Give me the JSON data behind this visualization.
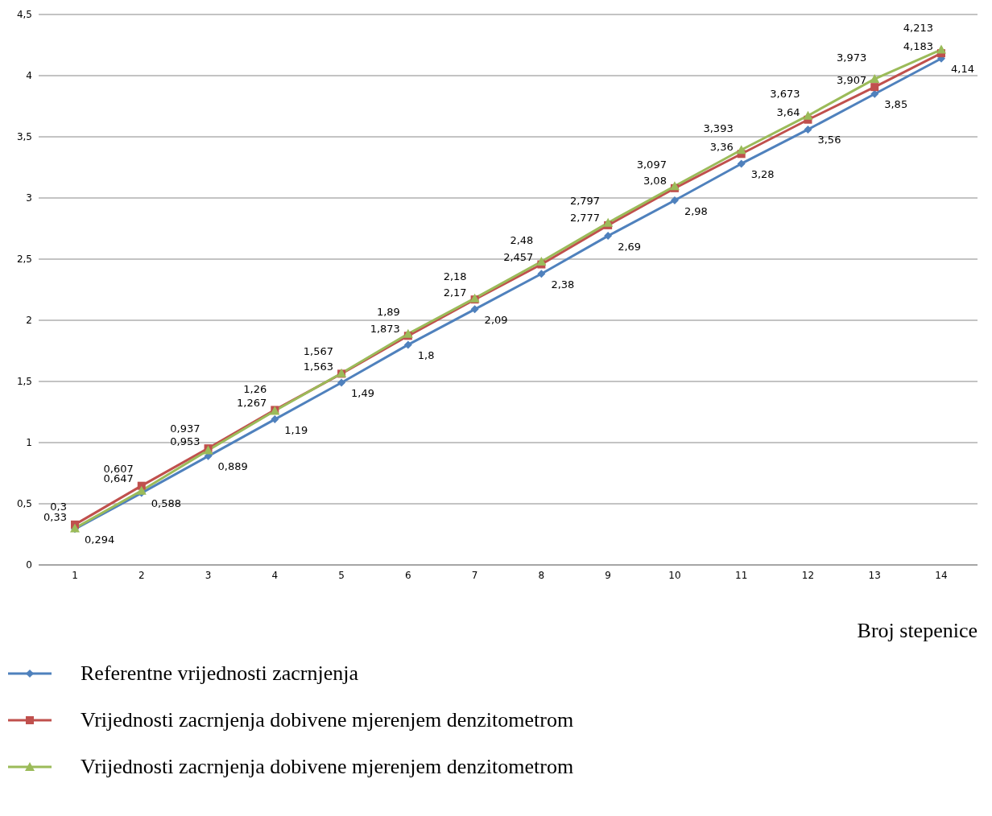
{
  "chart_data": {
    "type": "line",
    "xlabel": "Broj stepenice",
    "categories": [
      "1",
      "2",
      "3",
      "4",
      "5",
      "6",
      "7",
      "8",
      "9",
      "10",
      "11",
      "12",
      "13",
      "14"
    ],
    "ylim": [
      0,
      4.5
    ],
    "yticks": [
      {
        "value": 0,
        "label": "0"
      },
      {
        "value": 0.5,
        "label": "0,5"
      },
      {
        "value": 1,
        "label": "1"
      },
      {
        "value": 1.5,
        "label": "1,5"
      },
      {
        "value": 2,
        "label": "2"
      },
      {
        "value": 2.5,
        "label": "2,5"
      },
      {
        "value": 3,
        "label": "3"
      },
      {
        "value": 3.5,
        "label": "3,5"
      },
      {
        "value": 4,
        "label": "4"
      },
      {
        "value": 4.5,
        "label": "4,5"
      }
    ],
    "grid": "y",
    "legend": "bottom",
    "series": [
      {
        "name": "Referentne vrijednosti zacrnjenja",
        "color": "#4f81bd",
        "marker": "diamond",
        "values": [
          0.294,
          0.588,
          0.889,
          1.19,
          1.49,
          1.8,
          2.09,
          2.38,
          2.69,
          2.98,
          3.28,
          3.56,
          3.85,
          4.14
        ],
        "value_labels": [
          "0,294",
          "0,588",
          "0,889",
          "1,19",
          "1,49",
          "1,8",
          "2,09",
          "2,38",
          "2,69",
          "2,98",
          "3,28",
          "3,56",
          "3,85",
          "4,14"
        ]
      },
      {
        "name": "Vrijednosti zacrnjenja dobivene mjerenjem denzitometrom",
        "color": "#c0504d",
        "marker": "square",
        "values": [
          0.33,
          0.647,
          0.953,
          1.267,
          1.563,
          1.873,
          2.17,
          2.457,
          2.777,
          3.08,
          3.36,
          3.64,
          3.907,
          4.183
        ],
        "value_labels": [
          "0,33",
          "0,647",
          "0,953",
          "1,267",
          "1,563",
          "1,873",
          "2,17",
          "2,457",
          "2,777",
          "3,08",
          "3,36",
          "3,64",
          "3,907",
          "4,183"
        ]
      },
      {
        "name": "Vrijednosti zacrnjenja dobivene mjerenjem denzitometrom",
        "color": "#9bbb59",
        "marker": "triangle",
        "values": [
          0.3,
          0.607,
          0.937,
          1.26,
          1.567,
          1.89,
          2.18,
          2.48,
          2.797,
          3.097,
          3.393,
          3.673,
          3.973,
          4.213
        ],
        "value_labels": [
          "0,3",
          "0,607",
          "0,937",
          "1,26",
          "1,567",
          "1,89",
          "2,18",
          "2,48",
          "2,797",
          "3,097",
          "3,393",
          "3,673",
          "3,973",
          "4,213"
        ]
      }
    ]
  }
}
